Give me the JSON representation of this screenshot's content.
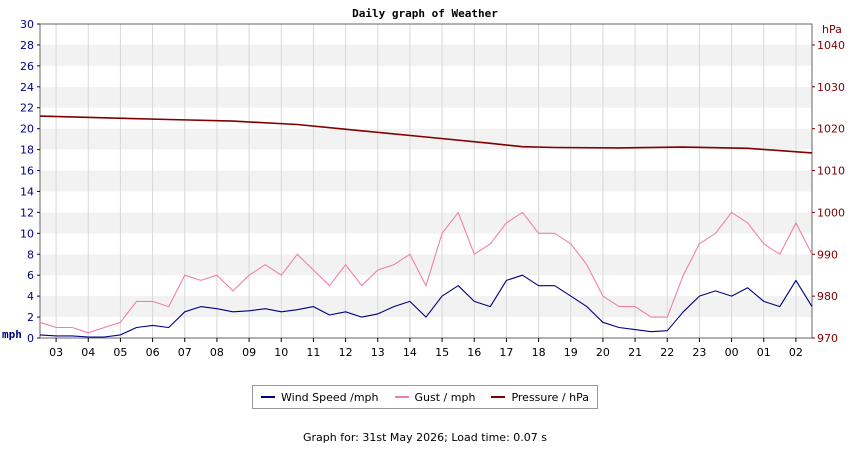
{
  "chart_data": {
    "type": "line",
    "title": "Daily graph of Weather",
    "left_axis_unit": "mph",
    "right_axis_unit": "hPa",
    "ylim_left": [
      0,
      30
    ],
    "ylim_right": [
      970,
      1045
    ],
    "yticks_left": [
      0,
      2,
      4,
      6,
      8,
      10,
      12,
      14,
      16,
      18,
      20,
      22,
      24,
      26,
      28,
      30
    ],
    "yticks_right": [
      970,
      980,
      990,
      1000,
      1010,
      1020,
      1030,
      1040
    ],
    "x_ticks": [
      "03",
      "04",
      "05",
      "06",
      "07",
      "08",
      "09",
      "10",
      "11",
      "12",
      "13",
      "14",
      "15",
      "16",
      "17",
      "18",
      "19",
      "20",
      "21",
      "22",
      "23",
      "00",
      "01",
      "02"
    ],
    "x_start_hour": 2.5,
    "x_end_hour": 26.5,
    "grid": true,
    "legend": "bottom-center",
    "series": [
      {
        "name": "Wind Speed /mph",
        "axis": "left",
        "color": "#000080",
        "x_hours": [
          2.5,
          3,
          3.5,
          4,
          4.5,
          5,
          5.5,
          6,
          6.5,
          7,
          7.5,
          8,
          8.5,
          9,
          9.5,
          10,
          10.5,
          11,
          11.5,
          12,
          12.5,
          13,
          13.5,
          14,
          14.5,
          15,
          15.5,
          16,
          16.5,
          17,
          17.5,
          18,
          18.5,
          19,
          19.5,
          20,
          20.5,
          21,
          21.5,
          22,
          22.5,
          23,
          23.5,
          24,
          24.5,
          25,
          25.5,
          26,
          26.5
        ],
        "values": [
          0.3,
          0.2,
          0.2,
          0.1,
          0.1,
          0.3,
          1.0,
          1.2,
          1.0,
          2.5,
          3.0,
          2.8,
          2.5,
          2.6,
          2.8,
          2.5,
          2.7,
          3.0,
          2.2,
          2.5,
          2.0,
          2.3,
          3.0,
          3.5,
          2.0,
          4.0,
          5.0,
          3.5,
          3.0,
          5.5,
          6.0,
          5.0,
          5.0,
          4.0,
          3.0,
          1.5,
          1.0,
          0.8,
          0.6,
          0.7,
          2.5,
          4.0,
          4.5,
          4.0,
          4.8,
          3.5,
          3.0,
          5.5,
          3.0
        ]
      },
      {
        "name": "Gust / mph",
        "axis": "left",
        "color": "#f080a8",
        "x_hours": [
          2.5,
          3,
          3.5,
          4,
          4.5,
          5,
          5.5,
          6,
          6.5,
          7,
          7.5,
          8,
          8.5,
          9,
          9.5,
          10,
          10.5,
          11,
          11.5,
          12,
          12.5,
          13,
          13.5,
          14,
          14.5,
          15,
          15.5,
          16,
          16.5,
          17,
          17.5,
          18,
          18.5,
          19,
          19.5,
          20,
          20.5,
          21,
          21.5,
          22,
          22.5,
          23,
          23.5,
          24,
          24.5,
          25,
          25.5,
          26,
          26.5
        ],
        "values": [
          1.5,
          1.0,
          1.0,
          0.5,
          1.0,
          1.5,
          3.5,
          3.5,
          3.0,
          6.0,
          5.5,
          6.0,
          4.5,
          6.0,
          7.0,
          6.0,
          8.0,
          6.5,
          5.0,
          7.0,
          5.0,
          6.5,
          7.0,
          8.0,
          5.0,
          10.0,
          12.0,
          8.0,
          9.0,
          11.0,
          12.0,
          10.0,
          10.0,
          9.0,
          7.0,
          4.0,
          3.0,
          3.0,
          2.0,
          2.0,
          6.0,
          9.0,
          10.0,
          12.0,
          11.0,
          9.0,
          8.0,
          11.0,
          8.0
        ]
      },
      {
        "name": "Pressure / hPa",
        "axis": "right",
        "color": "#800000",
        "x_hours": [
          2.5,
          4.5,
          6.5,
          8.5,
          10.5,
          12.5,
          14.5,
          16.5,
          17.5,
          18.5,
          20.5,
          22.5,
          24.5,
          26.5
        ],
        "values": [
          1023.0,
          1022.6,
          1022.2,
          1021.8,
          1021.0,
          1019.5,
          1018.0,
          1016.5,
          1015.7,
          1015.5,
          1015.4,
          1015.6,
          1015.3,
          1014.2
        ]
      }
    ]
  },
  "legend_items": [
    "Wind Speed /mph",
    "Gust / mph",
    "Pressure / hPa"
  ],
  "footer": "Graph for: 31st May 2026; Load time: 0.07 s"
}
